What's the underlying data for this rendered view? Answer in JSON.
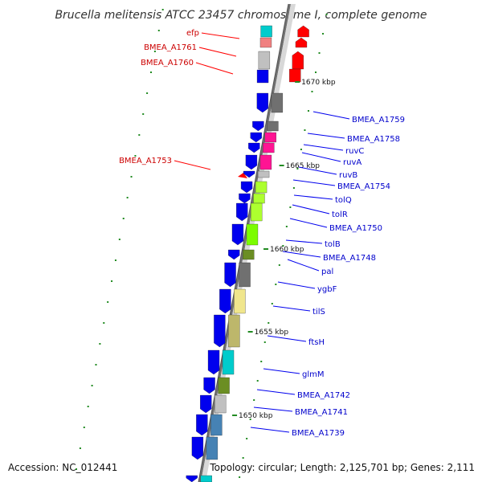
{
  "title": "Brucella melitensis ATCC 23457 chromosome I, complete genome",
  "footer": {
    "accession": "Accession: NC_012441",
    "topology": "Topology: circular; Length: 2,125,701 bp; Genes: 2,111"
  },
  "colors": {
    "reverse_label": "#cc0000",
    "forward_label": "#0000cc",
    "tick": "#228b22",
    "backbone": "#a0a0a0"
  },
  "kbp_labels": [
    {
      "text": "1670 kbp",
      "kbp": 1670
    },
    {
      "text": "1665 kbp",
      "kbp": 1665
    },
    {
      "text": "1660 kbp",
      "kbp": 1660
    },
    {
      "text": "1655 kbp",
      "kbp": 1655
    },
    {
      "text": "1650 kbp",
      "kbp": 1650
    }
  ],
  "genes_reverse": [
    {
      "label": "efp",
      "color": "#ff0000"
    },
    {
      "label": "BMEA_A1761",
      "color": "#ff0000"
    },
    {
      "label": "BMEA_A1760",
      "color": "#ff0000"
    },
    {
      "label": "BMEA_A1753",
      "color": "#ff0000"
    }
  ],
  "genes_forward": [
    {
      "label": "BMEA_A1759",
      "color": "#0000ee"
    },
    {
      "label": "BMEA_A1758",
      "color": "#0000ee"
    },
    {
      "label": "ruvC",
      "color": "#0000ee"
    },
    {
      "label": "ruvA",
      "color": "#0000ee"
    },
    {
      "label": "ruvB",
      "color": "#0000ee"
    },
    {
      "label": "BMEA_A1754",
      "color": "#0000ee"
    },
    {
      "label": "tolQ",
      "color": "#0000ee"
    },
    {
      "label": "tolR",
      "color": "#0000ee"
    },
    {
      "label": "BMEA_A1750",
      "color": "#0000ee"
    },
    {
      "label": "tolB",
      "color": "#0000ee"
    },
    {
      "label": "BMEA_A1748",
      "color": "#0000ee"
    },
    {
      "label": "pal",
      "color": "#0000ee"
    },
    {
      "label": "ygbF",
      "color": "#0000ee"
    },
    {
      "label": "tilS",
      "color": "#0000ee"
    },
    {
      "label": "ftsH",
      "color": "#0000ee"
    },
    {
      "label": "glmM",
      "color": "#0000ee"
    },
    {
      "label": "BMEA_A1742",
      "color": "#0000ee"
    },
    {
      "label": "BMEA_A1741",
      "color": "#0000ee"
    },
    {
      "label": "BMEA_A1739",
      "color": "#0000ee"
    }
  ],
  "cog_colors": [
    "#00cccc",
    "#f08080",
    "#c0c0c0",
    "#707070",
    "#ff1493",
    "#adff2f",
    "#7cfc00",
    "#6b8e23",
    "#f0e68c",
    "#bdb76b",
    "#4682b4"
  ]
}
